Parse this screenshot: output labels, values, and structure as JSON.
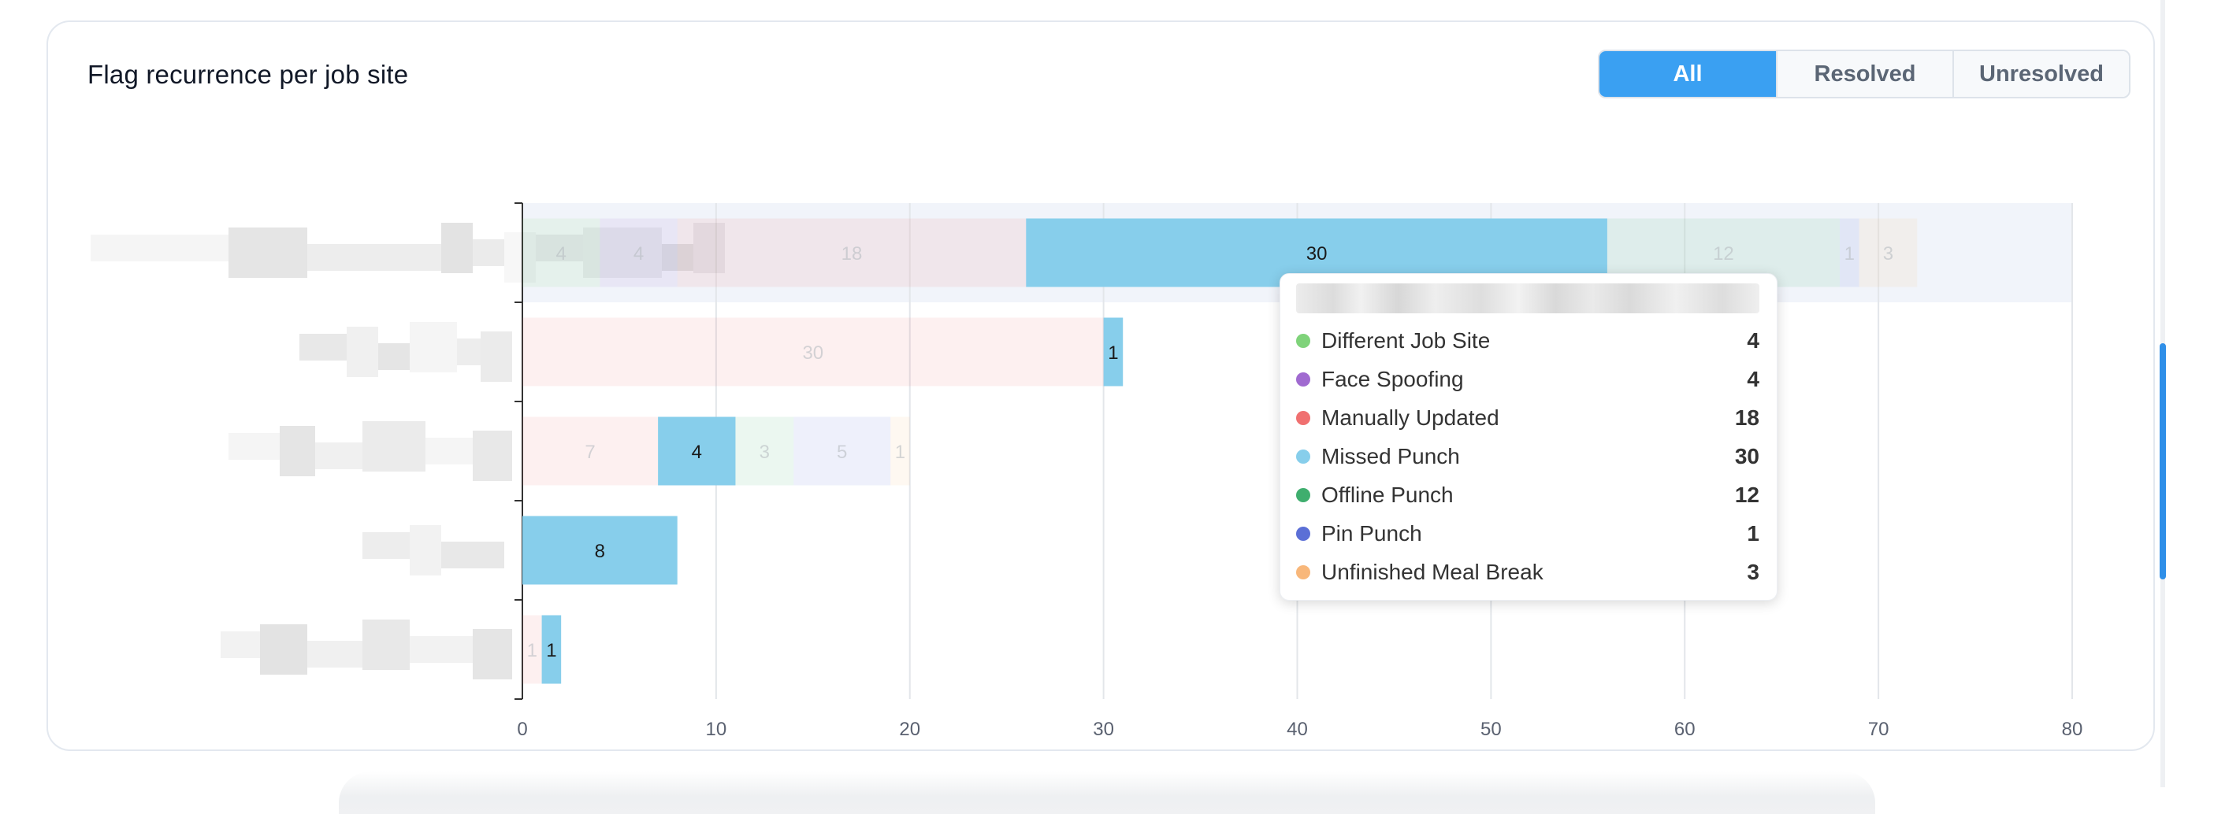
{
  "card": {
    "title": "Flag recurrence per job site",
    "filters": [
      {
        "label": "All",
        "active": true
      },
      {
        "label": "Resolved",
        "active": false
      },
      {
        "label": "Unresolved",
        "active": false
      }
    ]
  },
  "colors": {
    "accent": "#3aa0f2",
    "Different Job Site": "#7fd37a",
    "Face Spoofing": "#a06ad0",
    "Manually Updated": "#f07070",
    "Missed Punch": "#87ceeb",
    "Offline Punch": "#3fae6e",
    "Pin Punch": "#5b6fd6",
    "Unfinished Meal Break": "#f8b77a"
  },
  "chart_data": {
    "type": "bar",
    "orientation": "horizontal",
    "stacked": true,
    "xlim": [
      0,
      80
    ],
    "xticks": [
      0,
      10,
      20,
      30,
      40,
      50,
      60,
      70,
      80
    ],
    "grid": true,
    "highlighted_series": "Missed Punch",
    "categories": [
      "",
      "",
      "",
      "",
      ""
    ],
    "series": [
      {
        "name": "Different Job Site",
        "values": [
          4,
          0,
          0,
          0,
          0
        ]
      },
      {
        "name": "Face Spoofing",
        "values": [
          4,
          0,
          0,
          0,
          0
        ]
      },
      {
        "name": "Manually Updated",
        "values": [
          18,
          30,
          7,
          0,
          1
        ]
      },
      {
        "name": "Missed Punch",
        "values": [
          30,
          1,
          4,
          8,
          1
        ]
      },
      {
        "name": "Offline Punch",
        "values": [
          12,
          0,
          3,
          0,
          0
        ]
      },
      {
        "name": "Pin Punch",
        "values": [
          1,
          0,
          5,
          0,
          0
        ]
      },
      {
        "name": "Unfinished Meal Break",
        "values": [
          3,
          0,
          1,
          0,
          0
        ]
      }
    ]
  },
  "tooltip": {
    "rows": [
      {
        "label": "Different Job Site",
        "value": "4",
        "color": "#7fd37a"
      },
      {
        "label": "Face Spoofing",
        "value": "4",
        "color": "#a06ad0"
      },
      {
        "label": "Manually Updated",
        "value": "18",
        "color": "#f07070"
      },
      {
        "label": "Missed Punch",
        "value": "30",
        "color": "#87ceeb"
      },
      {
        "label": "Offline Punch",
        "value": "12",
        "color": "#3fae6e"
      },
      {
        "label": "Pin Punch",
        "value": "1",
        "color": "#5b6fd6"
      },
      {
        "label": "Unfinished Meal Break",
        "value": "3",
        "color": "#f8b77a"
      }
    ]
  }
}
